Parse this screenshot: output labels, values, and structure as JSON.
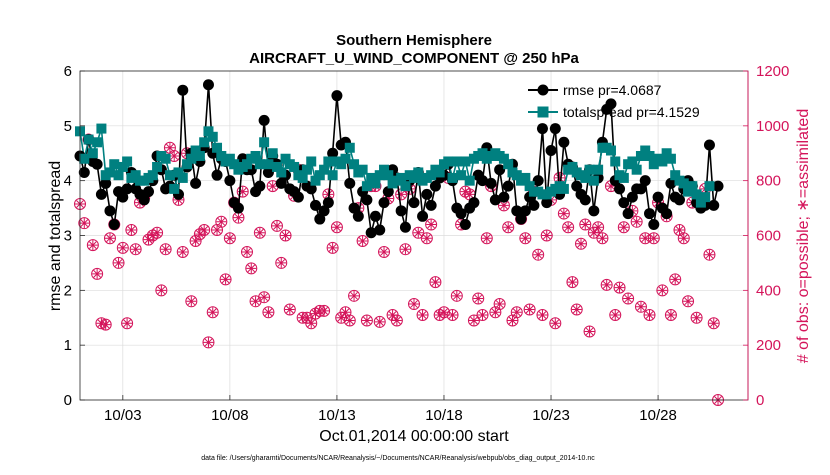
{
  "chart_data": {
    "type": "line",
    "title": "Southern Hemisphere",
    "subtitle": "AIRCRAFT_U_WIND_COMPONENT @ 250 hPa",
    "xlabel": "Oct.01,2014 00:00:00 start",
    "ylabel_left": "rmse and totalspread",
    "ylabel_right": "# of obs: o=possible; ∗=assimilated",
    "footnote": "data file: /Users/gharamti/Documents/NCAR/Reanalysis/~/Documents/NCAR/Reanalysis/webpub/obs_diag_output_2014-10.nc",
    "x_tick_labels": [
      "10/03",
      "10/08",
      "10/13",
      "10/18",
      "10/23",
      "10/28"
    ],
    "x_tick_days": [
      3,
      8,
      13,
      18,
      23,
      28
    ],
    "xlim_days": [
      1,
      32.2
    ],
    "ylim_left": [
      0,
      6
    ],
    "ylim_right": [
      0,
      1200
    ],
    "y_left_ticks": [
      "0",
      "1",
      "2",
      "3",
      "4",
      "5",
      "6"
    ],
    "y_right_ticks": [
      "0",
      "200",
      "400",
      "600",
      "800",
      "1000",
      "1200"
    ],
    "grid": true,
    "legend_position": "top-right",
    "colors": {
      "rmse": "#000000",
      "totalspread": "#008080",
      "obs": "#d4145a"
    },
    "series": [
      {
        "name": "rmse pr=4.0687",
        "axis": "left",
        "values": [
          4.45,
          4.15,
          4.75,
          4.35,
          4.3,
          3.75,
          3.95,
          3.45,
          3.2,
          3.8,
          3.7,
          3.85,
          4.15,
          3.85,
          3.75,
          3.65,
          3.8,
          4.0,
          4.45,
          4.2,
          3.85,
          3.9,
          4.1,
          3.75,
          5.65,
          4.25,
          4.5,
          3.95,
          4.35,
          4.6,
          5.75,
          4.5,
          4.1,
          4.4,
          4.35,
          4.0,
          3.6,
          3.5,
          4.4,
          4.2,
          4.2,
          3.8,
          3.9,
          5.1,
          4.15,
          4.45,
          4.3,
          3.95,
          4.1,
          3.85,
          3.8,
          3.7,
          4.2,
          3.9,
          3.85,
          3.55,
          3.3,
          3.45,
          3.6,
          4.5,
          5.55,
          4.65,
          4.7,
          3.95,
          3.5,
          3.35,
          3.8,
          3.65,
          3.05,
          3.35,
          3.1,
          3.6,
          3.8,
          4.2,
          4.05,
          3.45,
          3.15,
          4.0,
          3.6,
          4.15,
          3.35,
          3.75,
          3.55,
          3.9,
          4.05,
          4.1,
          4.3,
          4.0,
          3.5,
          3.4,
          3.2,
          3.5,
          3.6,
          4.1,
          4.0,
          4.6,
          3.95,
          3.65,
          4.2,
          3.7,
          3.9,
          4.3,
          3.45,
          3.3,
          3.45,
          3.7,
          3.55,
          4.0,
          4.95,
          3.6,
          4.55,
          4.95,
          3.75,
          4.7,
          4.3,
          4.25,
          3.9,
          3.75,
          3.65,
          4.2,
          3.45,
          4.05,
          4.7,
          5.3,
          5.4,
          4.0,
          3.85,
          3.6,
          3.4,
          3.7,
          3.85,
          3.85,
          4.0,
          3.4,
          3.2,
          3.7,
          3.5,
          3.4,
          3.95,
          3.7,
          3.65,
          3.85,
          4.0,
          3.9,
          3.6,
          3.5,
          3.55,
          4.65,
          3.55,
          3.9
        ]
      },
      {
        "name": "totalspread pr=4.1529",
        "axis": "left",
        "values": [
          4.9,
          4.4,
          4.75,
          4.5,
          4.7,
          4.95,
          4.1,
          4.15,
          4.3,
          4.1,
          4.25,
          4.35,
          4.05,
          4.1,
          4.0,
          4.0,
          4.05,
          4.1,
          4.25,
          4.45,
          4.4,
          4.1,
          3.85,
          4.15,
          4.05,
          4.3,
          4.4,
          4.55,
          4.45,
          4.7,
          4.9,
          4.8,
          4.6,
          4.45,
          4.35,
          4.4,
          4.3,
          4.2,
          4.25,
          4.3,
          4.4,
          4.45,
          4.3,
          4.7,
          4.3,
          4.5,
          4.25,
          4.15,
          4.4,
          4.3,
          4.25,
          4.1,
          4.05,
          4.2,
          4.35,
          4.0,
          4.1,
          4.2,
          4.35,
          4.1,
          4.35,
          4.3,
          4.4,
          4.6,
          4.3,
          4.15,
          4.2,
          3.9,
          4.05,
          3.95,
          4.1,
          4.2,
          4.1,
          3.95,
          4.0,
          4.05,
          3.9,
          4.1,
          4.05,
          4.15,
          4.0,
          4.05,
          4.1,
          4.2,
          4.15,
          4.3,
          4.35,
          4.05,
          4.35,
          4.1,
          4.35,
          4.0,
          4.4,
          4.45,
          4.5,
          4.4,
          4.45,
          4.5,
          4.45,
          4.4,
          4.3,
          4.15,
          4.1,
          4.0,
          4.05,
          3.9,
          3.8,
          3.8,
          3.75,
          3.75,
          3.8,
          3.85,
          3.9,
          3.85,
          4.2,
          4.25,
          4.15,
          4.1,
          4.05,
          4.2,
          4.0,
          4.2,
          4.6,
          4.6,
          4.55,
          4.35,
          4.1,
          4.05,
          4.3,
          4.35,
          4.2,
          4.45,
          4.55,
          4.45,
          4.3,
          4.4,
          4.35,
          4.5,
          4.4,
          4.1,
          4.0,
          3.95,
          3.8,
          3.9,
          3.75,
          3.6,
          3.7,
          3.9
        ]
      },
      {
        "name": "possible",
        "axis": "right",
        "marker": "o",
        "values": [
          715,
          645,
          950,
          565,
          460,
          280,
          275,
          590,
          640,
          500,
          555,
          280,
          620,
          550,
          720,
          740,
          585,
          600,
          610,
          400,
          550,
          920,
          890,
          730,
          540,
          900,
          360,
          580,
          605,
          620,
          210,
          320,
          620,
          650,
          440,
          590,
          720,
          665,
          760,
          540,
          480,
          360,
          610,
          375,
          320,
          780,
          635,
          500,
          600,
          330,
          745,
          840,
          300,
          300,
          280,
          315,
          325,
          325,
          750,
          555,
          630,
          300,
          320,
          290,
          380,
          700,
          580,
          290,
          780,
          780,
          285,
          540,
          735,
          310,
          290,
          750,
          550,
          770,
          350,
          610,
          310,
          590,
          640,
          430,
          310,
          320,
          810,
          310,
          380,
          640,
          760,
          750,
          290,
          370,
          310,
          590,
          780,
          320,
          350,
          710,
          630,
          290,
          320,
          660,
          590,
          330,
          760,
          530,
          310,
          600,
          730,
          280,
          810,
          680,
          630,
          430,
          330,
          570,
          640,
          250,
          610,
          630,
          590,
          420,
          780,
          310,
          410,
          630,
          370,
          690,
          650,
          340,
          590,
          310,
          590,
          720,
          400,
          670,
          310,
          440,
          620,
          590,
          360,
          720,
          300,
          730,
          770,
          530,
          280,
          0
        ]
      }
    ]
  }
}
